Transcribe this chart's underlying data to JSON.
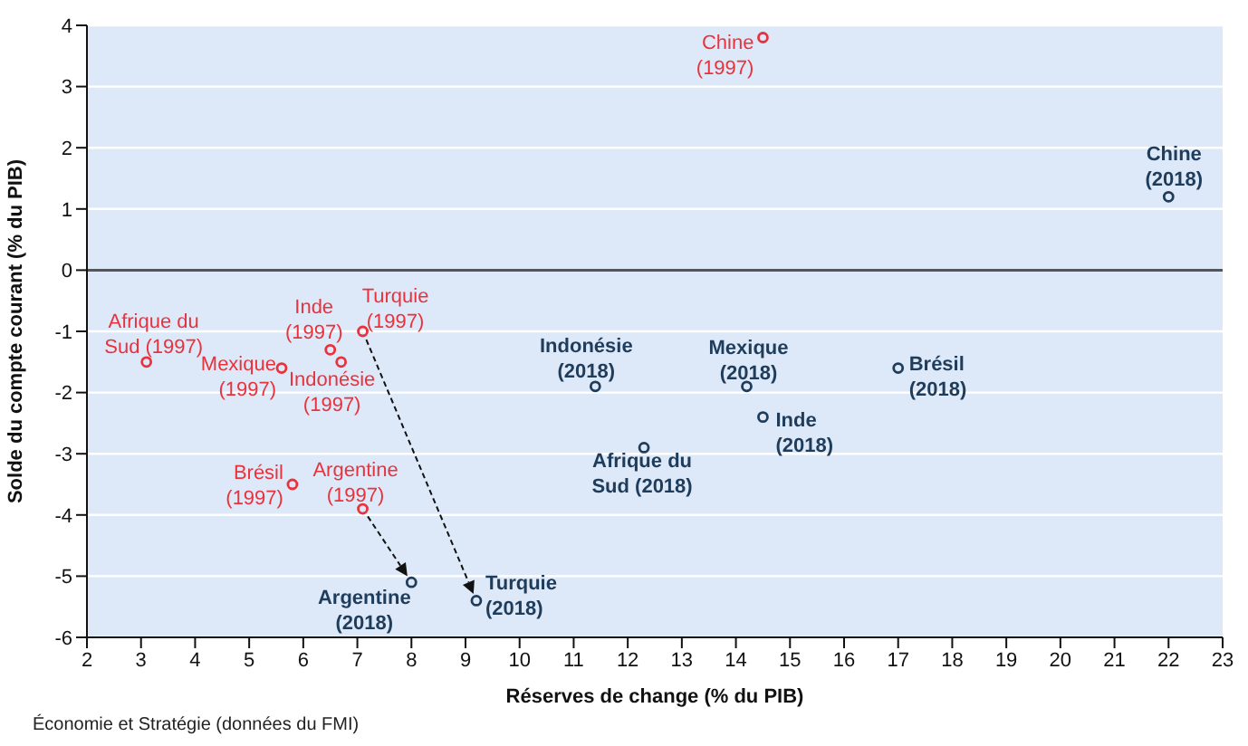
{
  "chart_data": {
    "type": "scatter",
    "xlabel": "Réserves de change (% du PIB)",
    "ylabel": "Solde du compte courant (% du PIB)",
    "series": [
      {
        "color": "#e8333c",
        "x": [
          3.1,
          5.6,
          6.5,
          6.7,
          7.1,
          5.8,
          7.1,
          14.5
        ],
        "values": [
          -1.5,
          -1.6,
          -1.3,
          -1.5,
          -1.0,
          -3.5,
          -3.9,
          3.8
        ]
      },
      {
        "color": "#1f3c5a",
        "x": [
          11.4,
          12.3,
          14.2,
          14.5,
          17.0,
          22.0,
          8.0,
          9.2
        ],
        "values": [
          -1.9,
          -2.9,
          -1.9,
          -2.4,
          -1.6,
          1.2,
          -5.1,
          -5.4
        ]
      }
    ],
    "xlim": [
      2,
      23
    ],
    "xticks": [
      2,
      3,
      4,
      5,
      6,
      7,
      8,
      9,
      10,
      11,
      12,
      13,
      14,
      15,
      16,
      17,
      18,
      19,
      20,
      21,
      22,
      23
    ],
    "ylim": [
      -6,
      4
    ],
    "yticks": [
      -6,
      -5,
      -4,
      -3,
      -2,
      -1,
      0,
      1,
      2,
      3,
      4
    ],
    "grid": "y",
    "marker": "circle",
    "ref_lines": [
      {
        "axis": "y",
        "value": 0,
        "color": "#555555"
      }
    ],
    "annotations": [
      {
        "text": "Afrique du\nSud (1997)",
        "x": 3.1,
        "y": -1.5
      },
      {
        "text": "Mexique\n(1997)",
        "x": 5.6,
        "y": -1.6
      },
      {
        "text": "Inde\n(1997)",
        "x": 6.5,
        "y": -1.3
      },
      {
        "text": "Indonésie\n(1997)",
        "x": 6.7,
        "y": -1.5
      },
      {
        "text": "Turquie\n(1997)",
        "x": 7.1,
        "y": -1.0
      },
      {
        "text": "Brésil\n(1997)",
        "x": 5.8,
        "y": -3.5
      },
      {
        "text": "Argentine\n(1997)",
        "x": 7.1,
        "y": -3.9
      },
      {
        "text": "Chine\n(1997)",
        "x": 14.5,
        "y": 3.8
      },
      {
        "text": "Indonésie\n(2018)",
        "x": 11.4,
        "y": -1.9
      },
      {
        "text": "Afrique du\nSud (2018)",
        "x": 12.3,
        "y": -2.9
      },
      {
        "text": "Mexique\n(2018)",
        "x": 14.2,
        "y": -1.9
      },
      {
        "text": "Inde\n(2018)",
        "x": 14.5,
        "y": -2.4
      },
      {
        "text": "Brésil\n(2018)",
        "x": 17.0,
        "y": -1.6
      },
      {
        "text": "Chine\n(2018)",
        "x": 22.0,
        "y": 1.2
      },
      {
        "text": "Argentine\n(2018)",
        "x": 8.0,
        "y": -5.1
      },
      {
        "text": "Turquie\n(2018)",
        "x": 9.2,
        "y": -5.4
      },
      "Économie et Stratégie (données du FMI)"
    ]
  }
}
